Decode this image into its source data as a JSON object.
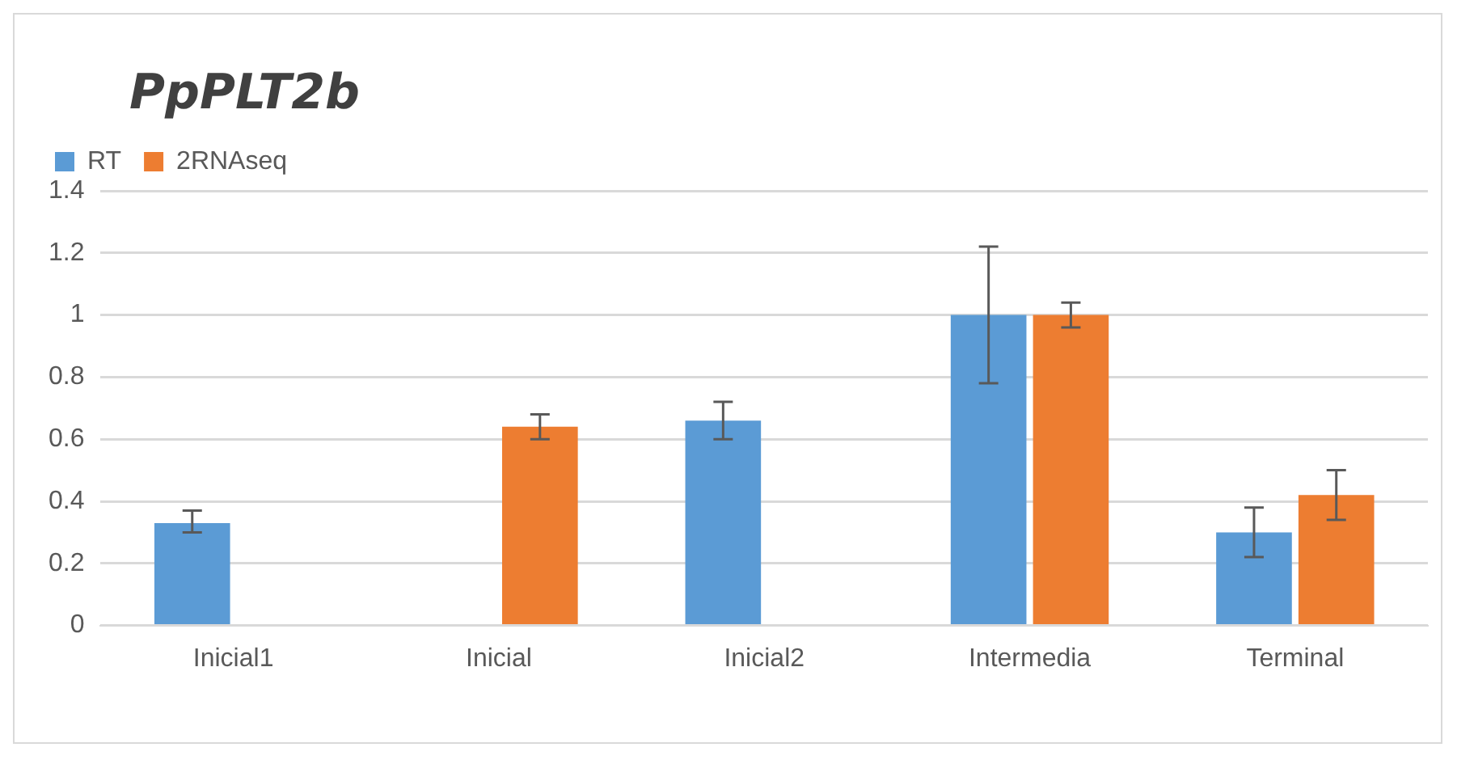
{
  "chart_data": {
    "type": "bar",
    "title": "PpPLT2b",
    "categories": [
      "Inicial1",
      "Inicial",
      "Inicial2",
      "Intermedia",
      "Terminal"
    ],
    "series": [
      {
        "name": "RT",
        "color": "#5b9bd5",
        "values": [
          0.33,
          null,
          0.66,
          1.0,
          0.3
        ],
        "errors": [
          [
            0.3,
            0.37
          ],
          null,
          [
            0.6,
            0.72
          ],
          [
            0.78,
            1.22
          ],
          [
            0.22,
            0.38
          ]
        ]
      },
      {
        "name": "2RNAseq",
        "color": "#ed7d31",
        "values": [
          null,
          0.64,
          null,
          1.0,
          0.42
        ],
        "errors": [
          null,
          [
            0.6,
            0.68
          ],
          null,
          [
            0.96,
            1.04
          ],
          [
            0.34,
            0.5
          ]
        ]
      }
    ],
    "ylim": [
      0,
      1.4
    ],
    "yticks": [
      0,
      0.2,
      0.4,
      0.6,
      0.8,
      1,
      1.2,
      1.4
    ],
    "grid": "y",
    "legend": "top left"
  }
}
